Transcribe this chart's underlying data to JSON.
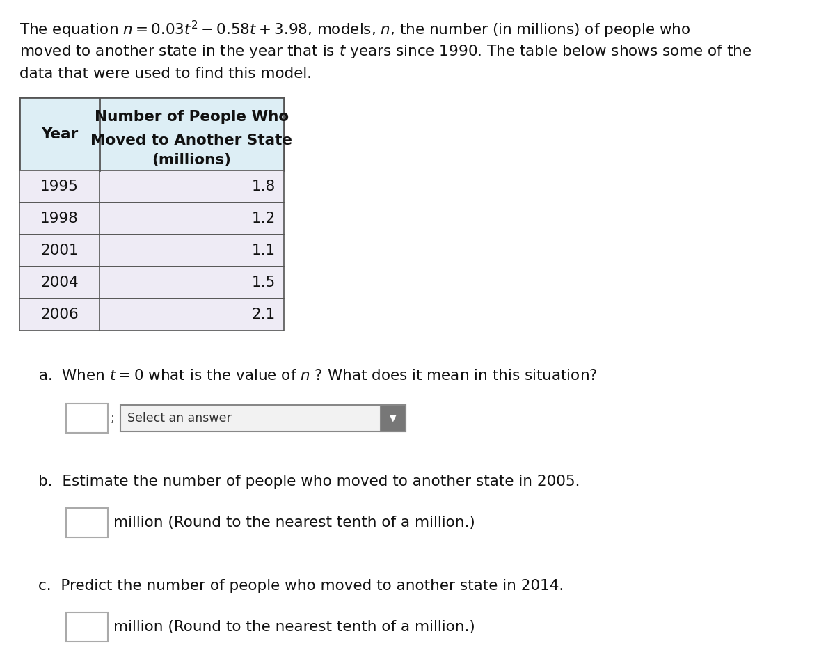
{
  "para_line1_plain": "The equation ",
  "para_line1_math": "n = 0.03t² − 0.58t + 3.98",
  "para_line1_rest": ", models, ",
  "para_line1_n": "n",
  "para_line1_end": ", the number (in millions) of people who",
  "para_line2": "moved to another state in the year that is ",
  "para_line2_t": "t",
  "para_line2_rest": " years since 1990. The table below shows some of the",
  "para_line3": "data that were used to find this model.",
  "table_header_col1": "Year",
  "table_header_line1": "Number of People Who",
  "table_header_line2": "Moved to Another State",
  "table_header_line3": "(millions)",
  "table_years": [
    "1995",
    "1998",
    "2001",
    "2004",
    "2006"
  ],
  "table_values": [
    "1.8",
    "1.2",
    "1.1",
    "1.5",
    "2.1"
  ],
  "qa_text1": "a.  When ",
  "qa_t": "t",
  "qa_text2": " = 0 what is the value of ",
  "qa_n": "n",
  "qa_text3": " ? What does it mean in this situation?",
  "select_answer_text": "Select an answer",
  "qb_text": "b.  Estimate the number of people who moved to another state in 2005.",
  "qb_sub": "million (Round to the nearest tenth of a million.)",
  "qc_text": "c.  Predict the number of people who moved to another state in 2014.",
  "qc_sub": "million (Round to the nearest tenth of a million.)",
  "bg_color": "#ffffff",
  "table_header_bg": "#ddeef5",
  "table_row_bg": "#eeebf5",
  "table_border_color": "#555555",
  "input_box_color": "#ffffff",
  "input_box_border": "#aaaaaa",
  "dropdown_bg": "#efefef",
  "dropdown_border": "#888888",
  "dropdown_cap_color": "#777777"
}
